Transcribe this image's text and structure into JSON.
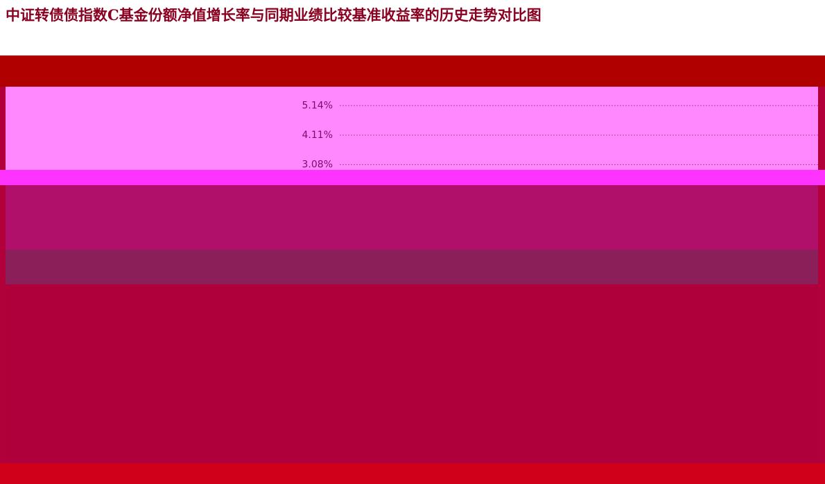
{
  "chart_data": {
    "type": "line",
    "title": "中证转债债指数C基金份额净值增长率与同期业绩比较基准收益率的历史走势对比图",
    "ylim": [
      2.8,
      5.8
    ],
    "yticks": [
      {
        "value": 5.14,
        "label": "5.14%"
      },
      {
        "value": 4.11,
        "label": "4.11%"
      },
      {
        "value": 3.08,
        "label": "3.08%"
      }
    ],
    "grid": true
  }
}
